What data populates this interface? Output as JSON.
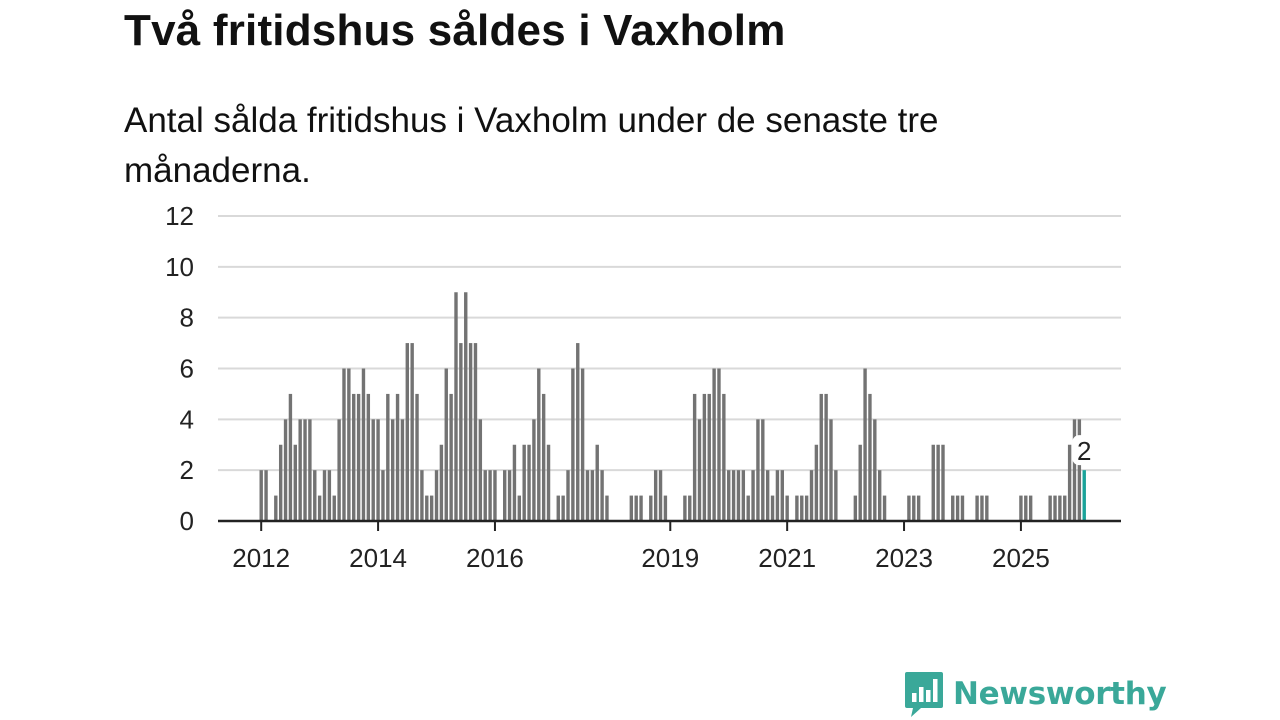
{
  "chart_data": {
    "type": "bar",
    "title": "Två fritidshus såldes i Vaxholm",
    "subtitle": "Antal sålda fritidshus i Vaxholm under de senaste tre månaderna.",
    "xlabel": "",
    "ylabel": "",
    "ylim": [
      0,
      12
    ],
    "yticks": [
      0,
      2,
      4,
      6,
      8,
      10,
      12
    ],
    "xticks": [
      "2012",
      "2014",
      "2016",
      "2019",
      "2021",
      "2023",
      "2025"
    ],
    "grid": true,
    "start_month": "2012-01",
    "frequency": "monthly",
    "values": [
      2,
      2,
      0,
      1,
      3,
      4,
      5,
      3,
      4,
      4,
      4,
      2,
      1,
      2,
      2,
      1,
      4,
      6,
      6,
      5,
      5,
      6,
      5,
      4,
      4,
      2,
      5,
      4,
      5,
      4,
      7,
      7,
      5,
      2,
      1,
      1,
      2,
      3,
      6,
      5,
      9,
      7,
      9,
      7,
      7,
      4,
      2,
      2,
      2,
      0,
      2,
      2,
      3,
      1,
      3,
      3,
      4,
      6,
      5,
      3,
      0,
      1,
      1,
      2,
      6,
      7,
      6,
      2,
      2,
      3,
      2,
      1,
      0,
      0,
      0,
      0,
      1,
      1,
      1,
      0,
      1,
      2,
      2,
      1,
      0,
      0,
      0,
      1,
      1,
      5,
      4,
      5,
      5,
      6,
      6,
      5,
      2,
      2,
      2,
      2,
      1,
      2,
      4,
      4,
      2,
      1,
      2,
      2,
      1,
      0,
      1,
      1,
      1,
      2,
      3,
      5,
      5,
      4,
      2,
      0,
      0,
      0,
      1,
      3,
      6,
      5,
      4,
      2,
      1,
      0,
      0,
      0,
      0,
      1,
      1,
      1,
      0,
      0,
      3,
      3,
      3,
      0,
      1,
      1,
      1,
      0,
      0,
      1,
      1,
      1,
      0,
      0,
      0,
      0,
      0,
      0,
      1,
      1,
      1,
      0,
      0,
      0,
      1,
      1,
      1,
      1,
      3,
      4,
      4,
      2
    ],
    "highlight": {
      "index": 169,
      "label": "2",
      "color": "#1aa39a"
    },
    "bar_color": "#737373"
  },
  "brand": {
    "name": "Newsworthy",
    "color": "#3aa899"
  }
}
